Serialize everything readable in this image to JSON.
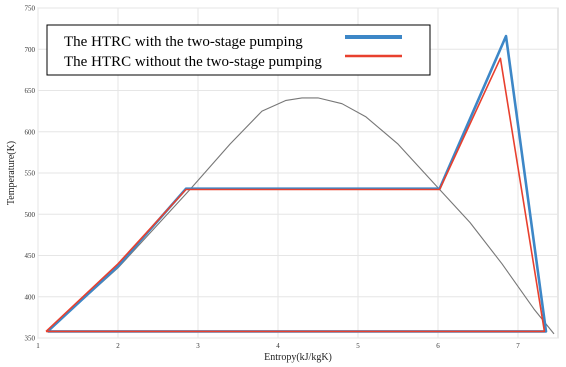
{
  "chart_data": {
    "type": "line",
    "title": "",
    "xlabel": "Entropy(kJ/kgK)",
    "ylabel": "Temperature(K)",
    "xlim": [
      1,
      7.5
    ],
    "ylim": [
      350,
      750
    ],
    "xticks": [
      "1",
      "2",
      "3",
      "4",
      "5",
      "6",
      "7"
    ],
    "yticks": [
      "350",
      "400",
      "450",
      "500",
      "550",
      "600",
      "650",
      "700",
      "750"
    ],
    "grid": true,
    "legend_position": "top-left",
    "series": [
      {
        "name": "The HTRC with the two-stage pumping",
        "color": "#3d87c7",
        "x": [
          1.12,
          2.0,
          2.85,
          6.02,
          6.85,
          7.35,
          1.12
        ],
        "y": [
          358,
          437,
          531,
          531,
          716,
          358,
          358
        ]
      },
      {
        "name": "The HTRC without the two-stage pumping",
        "color": "#e8402e",
        "x": [
          1.1,
          2.0,
          2.85,
          6.02,
          6.78,
          7.33,
          1.1
        ],
        "y": [
          358,
          440,
          530,
          530,
          689,
          358,
          358
        ]
      },
      {
        "name": "",
        "color": "#777777",
        "x": [
          1.12,
          2.0,
          2.9,
          3.4,
          3.8,
          4.1,
          4.3,
          4.5,
          4.8,
          5.1,
          5.5,
          6.0,
          6.4,
          6.8,
          7.2,
          7.45
        ],
        "y": [
          358,
          435,
          530,
          585,
          625,
          638,
          641,
          641,
          634,
          618,
          585,
          532,
          490,
          440,
          385,
          355
        ]
      }
    ]
  }
}
